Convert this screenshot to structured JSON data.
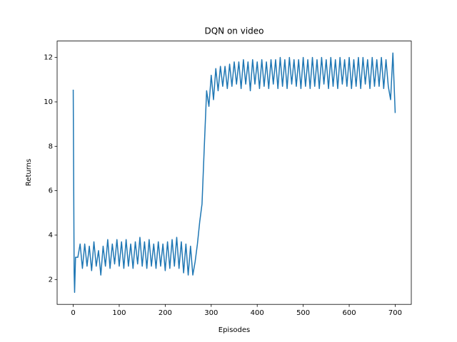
{
  "chart_data": {
    "type": "line",
    "title": "DQN on video",
    "xlabel": "Episodes",
    "ylabel": "Returns",
    "color": "#1f77b4",
    "x": [
      0,
      2,
      3,
      5,
      10,
      15,
      20,
      25,
      30,
      35,
      40,
      45,
      50,
      55,
      60,
      65,
      70,
      75,
      80,
      85,
      90,
      95,
      100,
      105,
      110,
      115,
      120,
      125,
      130,
      135,
      140,
      145,
      150,
      155,
      160,
      165,
      170,
      175,
      180,
      185,
      190,
      195,
      200,
      205,
      210,
      215,
      220,
      225,
      230,
      235,
      240,
      245,
      250,
      255,
      260,
      265,
      270,
      275,
      280,
      285,
      290,
      295,
      300,
      305,
      310,
      315,
      320,
      325,
      330,
      335,
      340,
      345,
      350,
      355,
      360,
      365,
      370,
      375,
      380,
      385,
      390,
      395,
      400,
      405,
      410,
      415,
      420,
      425,
      430,
      435,
      440,
      445,
      450,
      455,
      460,
      465,
      470,
      475,
      480,
      485,
      490,
      495,
      500,
      505,
      510,
      515,
      520,
      525,
      530,
      535,
      540,
      545,
      550,
      555,
      560,
      565,
      570,
      575,
      580,
      585,
      590,
      595,
      600,
      605,
      610,
      615,
      620,
      625,
      630,
      635,
      640,
      645,
      650,
      655,
      660,
      665,
      670,
      675,
      680,
      685,
      690,
      695,
      700
    ],
    "values": [
      10.55,
      2.3,
      1.42,
      3.0,
      3.0,
      3.6,
      2.5,
      3.6,
      2.6,
      3.5,
      2.4,
      3.7,
      2.6,
      3.3,
      2.2,
      3.5,
      2.6,
      3.8,
      2.5,
      3.6,
      2.7,
      3.8,
      2.6,
      3.7,
      2.5,
      3.8,
      2.6,
      3.6,
      2.5,
      3.7,
      2.7,
      3.9,
      2.6,
      3.7,
      2.5,
      3.8,
      2.6,
      3.6,
      2.5,
      3.7,
      2.6,
      3.6,
      2.4,
      3.7,
      2.5,
      3.8,
      2.6,
      3.9,
      2.5,
      3.7,
      2.3,
      3.6,
      2.2,
      3.5,
      2.2,
      2.8,
      3.6,
      4.6,
      5.4,
      8.0,
      10.5,
      9.8,
      11.2,
      10.1,
      11.5,
      10.5,
      11.6,
      10.7,
      11.6,
      10.6,
      11.7,
      10.7,
      11.8,
      10.8,
      11.8,
      10.6,
      11.9,
      10.8,
      11.8,
      10.5,
      11.9,
      10.8,
      11.8,
      10.6,
      11.9,
      10.7,
      11.8,
      10.6,
      11.9,
      10.8,
      11.9,
      10.6,
      12.0,
      10.7,
      11.9,
      10.6,
      12.0,
      10.8,
      11.9,
      10.7,
      11.9,
      10.6,
      12.0,
      10.7,
      11.9,
      10.6,
      12.0,
      10.7,
      11.9,
      10.6,
      12.0,
      10.8,
      11.9,
      10.6,
      12.0,
      10.7,
      11.9,
      10.6,
      12.0,
      10.8,
      11.9,
      10.7,
      12.0,
      10.6,
      11.9,
      10.7,
      12.0,
      10.6,
      12.0,
      10.8,
      11.9,
      10.6,
      12.0,
      10.7,
      11.9,
      10.7,
      12.0,
      10.6,
      11.9,
      10.7,
      10.1,
      12.2,
      9.5
    ],
    "xlim": [
      -35,
      735
    ],
    "ylim": [
      0.88,
      12.74
    ],
    "xticks": [
      0,
      100,
      200,
      300,
      400,
      500,
      600,
      700
    ],
    "yticks": [
      2,
      4,
      6,
      8,
      10,
      12
    ]
  }
}
